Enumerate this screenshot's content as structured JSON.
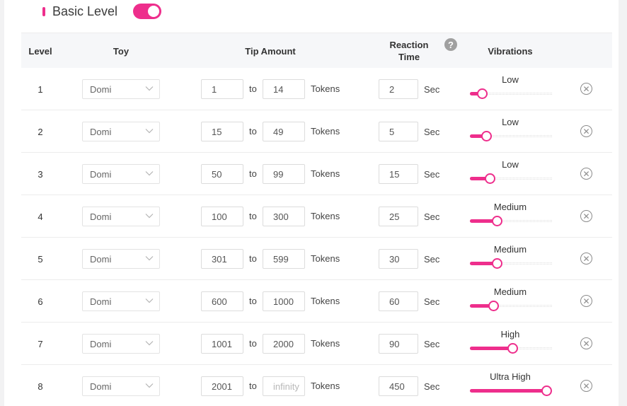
{
  "header": {
    "title": "Basic Level",
    "toggle_on": true,
    "accent": "#ee2e8c"
  },
  "table": {
    "headers": {
      "level": "Level",
      "toy": "Toy",
      "tip_amount": "Tip Amount",
      "reaction_line1": "Reaction",
      "reaction_line2": "Time",
      "help": "?",
      "vibrations": "Vibrations"
    },
    "to_label": "to",
    "tokens_label": "Tokens",
    "sec_label": "Sec",
    "rows": [
      {
        "level": "1",
        "toy": "Domi",
        "from": "1",
        "to": "14",
        "to_placeholder": false,
        "reaction": "2",
        "vibration": "Low",
        "vibration_level": 0.1
      },
      {
        "level": "2",
        "toy": "Domi",
        "from": "15",
        "to": "49",
        "to_placeholder": false,
        "reaction": "5",
        "vibration": "Low",
        "vibration_level": 0.16
      },
      {
        "level": "3",
        "toy": "Domi",
        "from": "50",
        "to": "99",
        "to_placeholder": false,
        "reaction": "15",
        "vibration": "Low",
        "vibration_level": 0.21
      },
      {
        "level": "4",
        "toy": "Domi",
        "from": "100",
        "to": "300",
        "to_placeholder": false,
        "reaction": "25",
        "vibration": "Medium",
        "vibration_level": 0.31
      },
      {
        "level": "5",
        "toy": "Domi",
        "from": "301",
        "to": "599",
        "to_placeholder": false,
        "reaction": "30",
        "vibration": "Medium",
        "vibration_level": 0.31
      },
      {
        "level": "6",
        "toy": "Domi",
        "from": "600",
        "to": "1000",
        "to_placeholder": false,
        "reaction": "60",
        "vibration": "Medium",
        "vibration_level": 0.26
      },
      {
        "level": "7",
        "toy": "Domi",
        "from": "1001",
        "to": "2000",
        "to_placeholder": false,
        "reaction": "90",
        "vibration": "High",
        "vibration_level": 0.52
      },
      {
        "level": "8",
        "toy": "Domi",
        "from": "2001",
        "to": "infinity",
        "to_placeholder": true,
        "reaction": "450",
        "vibration": "Ultra High",
        "vibration_level": 1.0
      }
    ]
  }
}
